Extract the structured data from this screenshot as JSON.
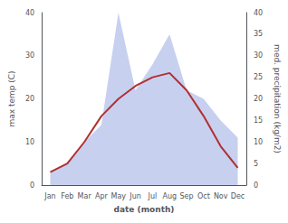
{
  "chart_data": {
    "type": "line",
    "xlabel": "date (month)",
    "ylabel": "max temp (C)",
    "y2label": "med. precipitation (kg/m2)",
    "categories": [
      "Jan",
      "Feb",
      "Mar",
      "Apr",
      "May",
      "Jun",
      "Jul",
      "Aug",
      "Sep",
      "Oct",
      "Nov",
      "Dec"
    ],
    "series": [
      {
        "type": "area",
        "axis": "y2",
        "color": "#c8d0f0",
        "values": [
          3,
          5,
          10,
          14,
          40,
          22,
          28,
          35,
          22,
          20,
          15,
          11
        ]
      },
      {
        "type": "line",
        "color": "#b03030",
        "values": [
          3,
          5,
          10,
          16,
          20,
          23,
          25,
          26,
          22,
          16,
          9,
          4
        ]
      }
    ],
    "ylim": [
      0,
      40
    ],
    "yticks": [
      0,
      10,
      20,
      30,
      40
    ],
    "y2lim": [
      0,
      40
    ],
    "y2ticks": [
      0,
      5,
      10,
      15,
      20,
      25,
      30,
      35,
      40
    ],
    "grid": false
  }
}
